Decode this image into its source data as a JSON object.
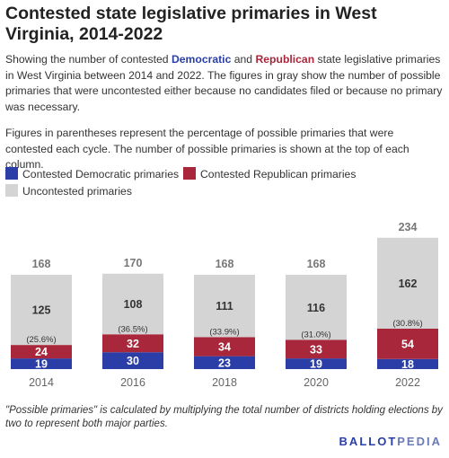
{
  "title": "Contested state legislative primaries in West Virginia, 2014-2022",
  "description": {
    "p1_pre": "Showing the number of contested ",
    "p1_dem": "Democratic",
    "p1_and": " and ",
    "p1_rep": "Republican",
    "p1_post": " state legislative primaries in West Virginia between 2014 and 2022. The figures in gray show the number of possible primaries that were uncontested either because no candidates filed or because no primary was necessary.",
    "p2": "Figures in parentheses represent the percentage of possible primaries that were contested each cycle. The number of possible primaries is shown at the top of each column."
  },
  "colors": {
    "democratic": "#2b3ea8",
    "republican": "#a8273a",
    "uncontested": "#d4d4d4",
    "axis_text": "#666666",
    "total_text": "#777777"
  },
  "chart_data": {
    "type": "bar",
    "stacked": true,
    "categories": [
      "2014",
      "2016",
      "2018",
      "2020",
      "2022"
    ],
    "series": [
      {
        "name": "Contested Democratic primaries",
        "values": [
          19,
          30,
          23,
          19,
          18
        ]
      },
      {
        "name": "Contested Republican primaries",
        "values": [
          24,
          32,
          34,
          33,
          54
        ]
      },
      {
        "name": "Uncontested primaries",
        "values": [
          125,
          108,
          111,
          116,
          162
        ]
      }
    ],
    "totals": [
      168,
      170,
      168,
      168,
      234
    ],
    "percent_contested": [
      "(25.6%)",
      "(36.5%)",
      "(33.9%)",
      "(31.0%)",
      "(30.8%)"
    ],
    "ylim": [
      0,
      240
    ],
    "grid": false,
    "legend_position": "top-left"
  },
  "footnote": "\"Possible primaries\" is calculated by multiplying the total number of districts holding elections by two to represent both major parties.",
  "brand": {
    "part1": "BALLOT",
    "part2": "PEDIA"
  }
}
